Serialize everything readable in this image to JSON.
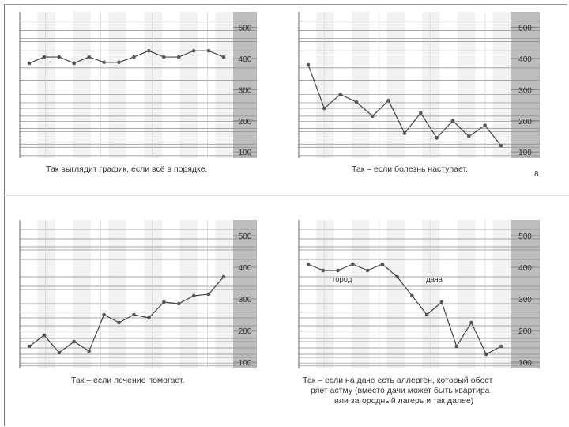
{
  "page_number": "8",
  "chart_data": [
    {
      "type": "line",
      "title": "",
      "xlabel": "",
      "ylabel": "",
      "ylim": [
        80,
        550
      ],
      "yticks": [
        "500",
        "400",
        "300",
        "200",
        "100"
      ],
      "grid": true,
      "series": [
        {
          "values": [
            385,
            405,
            405,
            385,
            405,
            388,
            388,
            405,
            425,
            405,
            405,
            425,
            425,
            405
          ]
        }
      ],
      "annotations": [],
      "caption": [
        "Так выглядит график, если всё в порядке."
      ]
    },
    {
      "type": "line",
      "title": "",
      "xlabel": "",
      "ylabel": "",
      "ylim": [
        80,
        550
      ],
      "yticks": [
        "500",
        "400",
        "300",
        "200",
        "100"
      ],
      "grid": true,
      "series": [
        {
          "values": [
            380,
            240,
            285,
            260,
            215,
            265,
            160,
            225,
            145,
            200,
            150,
            185,
            120
          ]
        }
      ],
      "annotations": [],
      "caption": [
        "Так – если болезнь наступает."
      ]
    },
    {
      "type": "line",
      "title": "",
      "xlabel": "",
      "ylabel": "",
      "ylim": [
        80,
        550
      ],
      "yticks": [
        "500",
        "400",
        "300",
        "200",
        "100"
      ],
      "grid": true,
      "series": [
        {
          "values": [
            150,
            185,
            130,
            165,
            135,
            250,
            225,
            250,
            240,
            290,
            285,
            310,
            315,
            370
          ]
        }
      ],
      "annotations": [],
      "caption": [
        "Так – если лечение помогает."
      ]
    },
    {
      "type": "line",
      "title": "",
      "xlabel": "",
      "ylabel": "",
      "ylim": [
        80,
        550
      ],
      "yticks": [
        "500",
        "400",
        "300",
        "200",
        "100"
      ],
      "grid": true,
      "series": [
        {
          "values": [
            410,
            390,
            390,
            410,
            390,
            410,
            370,
            310,
            250,
            290,
            150,
            225,
            125,
            150
          ]
        }
      ],
      "annotations": [
        {
          "text": "город",
          "at_index": 2.3,
          "y": 355
        },
        {
          "text": "дача",
          "at_index": 8.5,
          "y": 355
        }
      ],
      "caption": [
        "Так – если на даче есть аллерген, который обост",
        "ряет астму (вместо дачи может быть квартира",
        "или загородный лагерь и так далее)"
      ]
    }
  ]
}
